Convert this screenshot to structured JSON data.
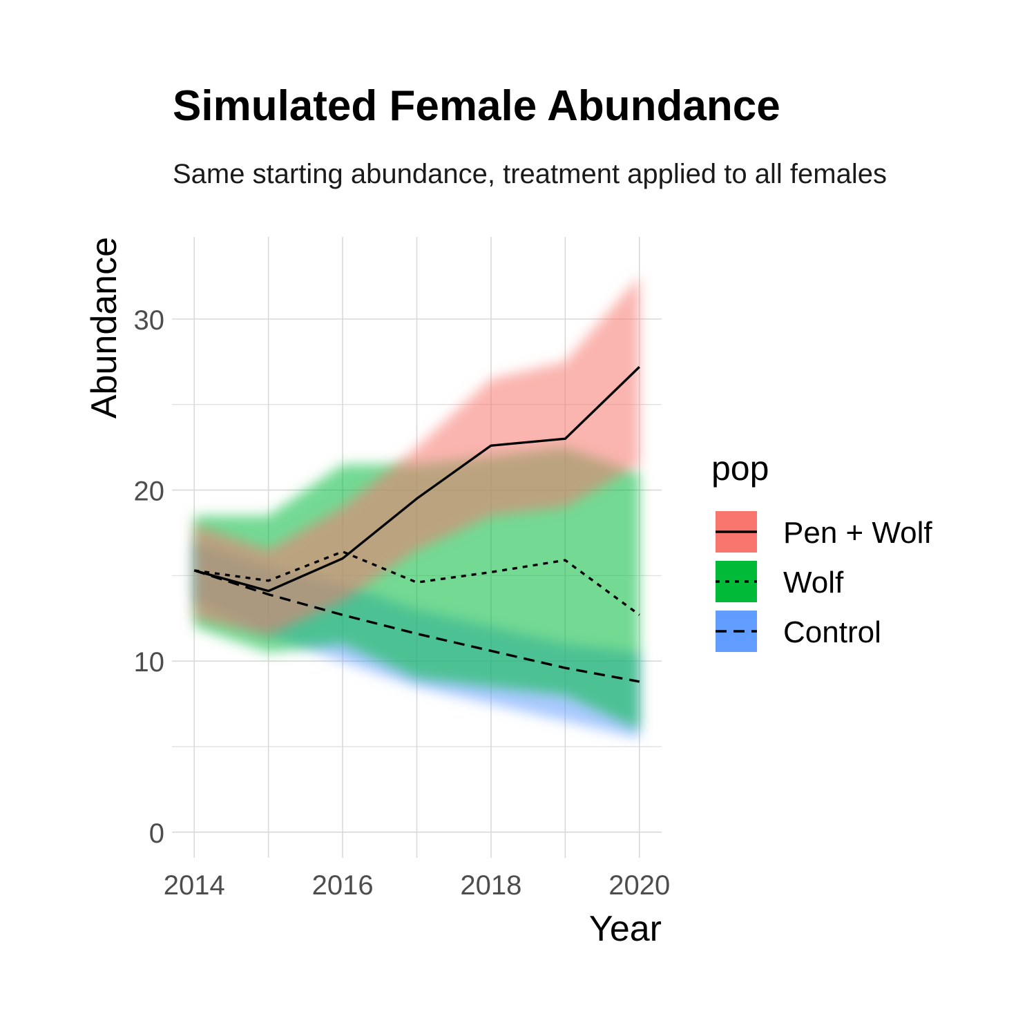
{
  "title": "Simulated Female Abundance",
  "subtitle": "Same starting abundance, treatment applied to all females",
  "chart_data": {
    "type": "line",
    "title": "Simulated Female Abundance",
    "subtitle": "Same starting abundance, treatment applied to all females",
    "xlabel": "Year",
    "ylabel": "Abundance",
    "x": [
      2014,
      2015,
      2016,
      2017,
      2018,
      2019,
      2020
    ],
    "x_ticks": [
      "2014",
      "2016",
      "2018",
      "2020"
    ],
    "y_ticks": [
      "0",
      "10",
      "20",
      "30"
    ],
    "xlim": [
      2013.7,
      2020.3
    ],
    "ylim": [
      -1.5,
      34.8
    ],
    "grid": true,
    "legend": {
      "title": "pop",
      "position": "right"
    },
    "series": [
      {
        "name": "Pen + Wolf",
        "color": "#F8766D",
        "linestyle": "solid",
        "values": [
          15.3,
          14.1,
          16.0,
          19.5,
          22.6,
          23.0,
          27.2
        ],
        "lower": [
          12.5,
          11.5,
          13.5,
          16.5,
          18.5,
          19.0,
          21.5
        ],
        "upper": [
          18.0,
          16.5,
          19.0,
          22.5,
          26.5,
          27.5,
          32.5
        ]
      },
      {
        "name": "Wolf",
        "color": "#00BA38",
        "linestyle": "dotted",
        "values": [
          15.3,
          14.7,
          16.4,
          14.6,
          15.2,
          15.9,
          12.7
        ],
        "lower": [
          12.0,
          10.5,
          11.0,
          9.0,
          8.5,
          8.0,
          6.0
        ],
        "upper": [
          18.5,
          18.5,
          21.5,
          21.5,
          22.0,
          22.5,
          21.0
        ]
      },
      {
        "name": "Control",
        "color": "#619CFF",
        "linestyle": "dashed",
        "values": [
          15.3,
          13.9,
          12.7,
          11.6,
          10.6,
          9.6,
          8.8
        ],
        "lower": [
          13.5,
          11.5,
          10.0,
          8.5,
          7.5,
          6.5,
          5.5
        ],
        "upper": [
          17.0,
          15.5,
          14.5,
          13.0,
          12.0,
          11.0,
          10.5
        ]
      }
    ]
  }
}
